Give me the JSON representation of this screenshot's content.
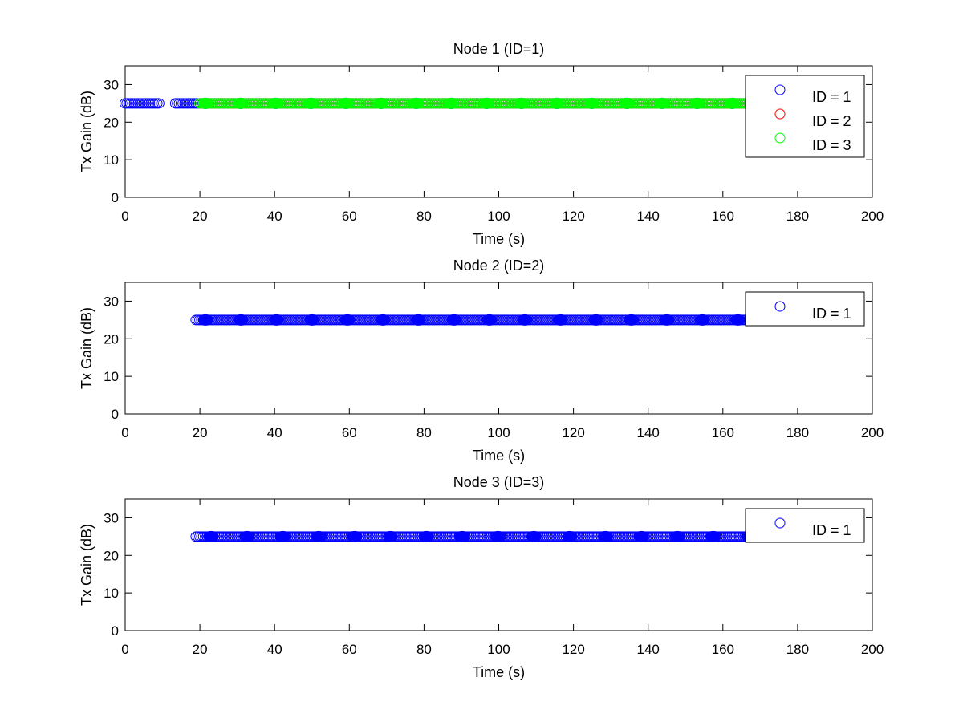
{
  "chart_data": [
    {
      "type": "scatter",
      "title": "Node 1 (ID=1)",
      "xlabel": "Time (s)",
      "ylabel": "Tx Gain (dB)",
      "xlim": [
        0,
        200
      ],
      "ylim": [
        0,
        35
      ],
      "xticks": [
        0,
        20,
        40,
        60,
        80,
        100,
        120,
        140,
        160,
        180,
        200
      ],
      "yticks": [
        0,
        10,
        20,
        30
      ],
      "legend": "top-right",
      "grid": false,
      "series": [
        {
          "name": "ID = 1",
          "color": "#0000ff",
          "y": 25,
          "ranges": [
            [
              0,
              9.3
            ],
            [
              13.5,
              192
            ]
          ],
          "step": 0.5,
          "filled_every": 9.4,
          "filled_start": 21.5
        },
        {
          "name": "ID = 2",
          "color": "#ff0000",
          "y": 25,
          "ranges": [
            [
              20,
              192
            ]
          ],
          "step": 0.5
        },
        {
          "name": "ID = 3",
          "color": "#00ff00",
          "y": 25,
          "ranges": [
            [
              20,
              192
            ]
          ],
          "step": 0.5,
          "filled_every": 9.4,
          "filled_start": 21.5
        }
      ]
    },
    {
      "type": "scatter",
      "title": "Node 2 (ID=2)",
      "xlabel": "Time (s)",
      "ylabel": "Tx Gain (dB)",
      "xlim": [
        0,
        200
      ],
      "ylim": [
        0,
        35
      ],
      "xticks": [
        0,
        20,
        40,
        60,
        80,
        100,
        120,
        140,
        160,
        180,
        200
      ],
      "yticks": [
        0,
        10,
        20,
        30
      ],
      "legend": "top-right",
      "grid": false,
      "series": [
        {
          "name": "ID = 1",
          "color": "#0000ff",
          "y": 25,
          "ranges": [
            [
              19,
              192
            ]
          ],
          "step": 0.5,
          "filled_every": 9.5,
          "filled_start": 21.5
        }
      ]
    },
    {
      "type": "scatter",
      "title": "Node 3 (ID=3)",
      "xlabel": "Time (s)",
      "ylabel": "Tx Gain (dB)",
      "xlim": [
        0,
        200
      ],
      "ylim": [
        0,
        35
      ],
      "xticks": [
        0,
        20,
        40,
        60,
        80,
        100,
        120,
        140,
        160,
        180,
        200
      ],
      "yticks": [
        0,
        10,
        20,
        30
      ],
      "legend": "top-right",
      "grid": false,
      "series": [
        {
          "name": "ID = 1",
          "color": "#0000ff",
          "y": 25,
          "ranges": [
            [
              19,
              192
            ]
          ],
          "step": 0.5,
          "filled_every": 9.6,
          "filled_start": 23
        }
      ]
    }
  ]
}
